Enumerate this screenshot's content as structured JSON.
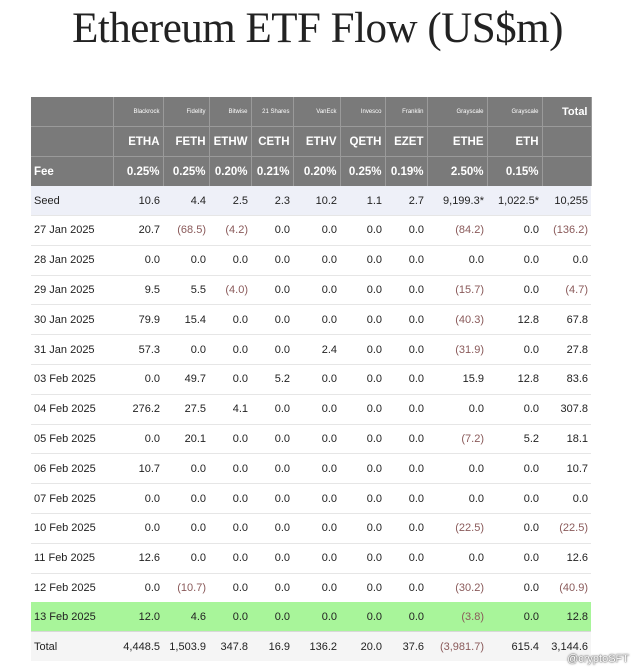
{
  "title": "Ethereum ETF Flow (US$m)",
  "header": {
    "issuers": [
      "",
      "Blackrock",
      "Fidelity",
      "Bitwise",
      "21 Shares",
      "VanEck",
      "Invesco",
      "Franklin",
      "Grayscale",
      "Grayscale",
      "Total"
    ],
    "tickers": [
      "",
      "ETHA",
      "FETH",
      "ETHW",
      "CETH",
      "ETHV",
      "QETH",
      "EZET",
      "ETHE",
      "ETH",
      ""
    ],
    "fees": [
      "Fee",
      "0.25%",
      "0.25%",
      "0.20%",
      "0.21%",
      "0.20%",
      "0.25%",
      "0.19%",
      "2.50%",
      "0.15%",
      ""
    ]
  },
  "rows": [
    [
      "Seed",
      "10.6",
      "4.4",
      "2.5",
      "2.3",
      "10.2",
      "1.1",
      "2.7",
      "9,199.3*",
      "1,022.5*",
      "10,255"
    ],
    [
      "27 Jan 2025",
      "20.7",
      "(68.5)",
      "(4.2)",
      "0.0",
      "0.0",
      "0.0",
      "0.0",
      "(84.2)",
      "0.0",
      "(136.2)"
    ],
    [
      "28 Jan 2025",
      "0.0",
      "0.0",
      "0.0",
      "0.0",
      "0.0",
      "0.0",
      "0.0",
      "0.0",
      "0.0",
      "0.0"
    ],
    [
      "29 Jan 2025",
      "9.5",
      "5.5",
      "(4.0)",
      "0.0",
      "0.0",
      "0.0",
      "0.0",
      "(15.7)",
      "0.0",
      "(4.7)"
    ],
    [
      "30 Jan 2025",
      "79.9",
      "15.4",
      "0.0",
      "0.0",
      "0.0",
      "0.0",
      "0.0",
      "(40.3)",
      "12.8",
      "67.8"
    ],
    [
      "31 Jan 2025",
      "57.3",
      "0.0",
      "0.0",
      "0.0",
      "2.4",
      "0.0",
      "0.0",
      "(31.9)",
      "0.0",
      "27.8"
    ],
    [
      "03 Feb 2025",
      "0.0",
      "49.7",
      "0.0",
      "5.2",
      "0.0",
      "0.0",
      "0.0",
      "15.9",
      "12.8",
      "83.6"
    ],
    [
      "04 Feb 2025",
      "276.2",
      "27.5",
      "4.1",
      "0.0",
      "0.0",
      "0.0",
      "0.0",
      "0.0",
      "0.0",
      "307.8"
    ],
    [
      "05 Feb 2025",
      "0.0",
      "20.1",
      "0.0",
      "0.0",
      "0.0",
      "0.0",
      "0.0",
      "(7.2)",
      "5.2",
      "18.1"
    ],
    [
      "06 Feb 2025",
      "10.7",
      "0.0",
      "0.0",
      "0.0",
      "0.0",
      "0.0",
      "0.0",
      "0.0",
      "0.0",
      "10.7"
    ],
    [
      "07 Feb 2025",
      "0.0",
      "0.0",
      "0.0",
      "0.0",
      "0.0",
      "0.0",
      "0.0",
      "0.0",
      "0.0",
      "0.0"
    ],
    [
      "10 Feb 2025",
      "0.0",
      "0.0",
      "0.0",
      "0.0",
      "0.0",
      "0.0",
      "0.0",
      "(22.5)",
      "0.0",
      "(22.5)"
    ],
    [
      "11 Feb 2025",
      "12.6",
      "0.0",
      "0.0",
      "0.0",
      "0.0",
      "0.0",
      "0.0",
      "0.0",
      "0.0",
      "12.6"
    ],
    [
      "12 Feb 2025",
      "0.0",
      "(10.7)",
      "0.0",
      "0.0",
      "0.0",
      "0.0",
      "0.0",
      "(30.2)",
      "0.0",
      "(40.9)"
    ],
    [
      "13 Feb 2025",
      "12.0",
      "4.6",
      "0.0",
      "0.0",
      "0.0",
      "0.0",
      "0.0",
      "(3.8)",
      "0.0",
      "12.8"
    ],
    [
      "Total",
      "4,448.5",
      "1,503.9",
      "347.8",
      "16.9",
      "136.2",
      "20.0",
      "37.6",
      "(3,981.7)",
      "615.4",
      "3,144.6"
    ]
  ],
  "highlight_row_label": "13 Feb 2025",
  "watermark": "@cryptoSFT",
  "colors": {
    "header_bg": "#7a7a7a",
    "highlight": "#a8f59a",
    "seed_bg": "#eef0f8",
    "negative": "#8a5a5a"
  }
}
